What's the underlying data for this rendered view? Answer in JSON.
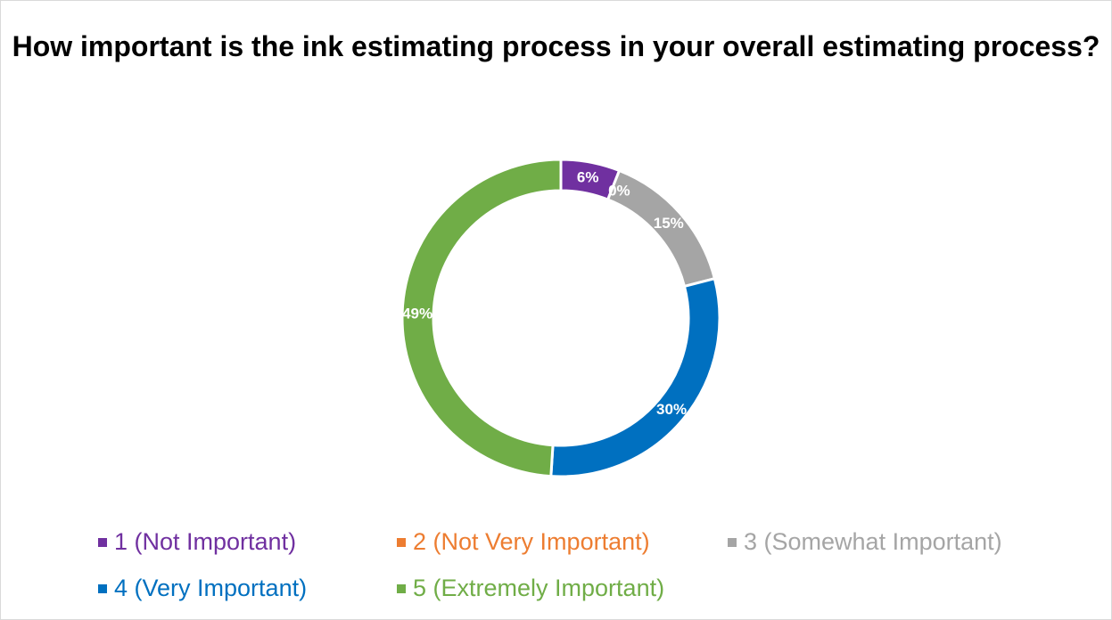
{
  "chart_data": {
    "type": "pie",
    "variant": "donut",
    "title": "How important is the ink estimating process in your overall estimating process?",
    "categories": [
      "1 (Not Important)",
      "2 (Not Very Important)",
      "3 (Somewhat Important)",
      "4 (Very Important)",
      "5 (Extremely Important)"
    ],
    "values": [
      6,
      0,
      15,
      30,
      49
    ],
    "value_labels": [
      "6%",
      "0%",
      "15%",
      "30%",
      "49%"
    ],
    "colors": [
      "#7030a0",
      "#ed7d31",
      "#a5a5a5",
      "#0070c0",
      "#70ad47"
    ],
    "legend_placement": "bottom"
  }
}
